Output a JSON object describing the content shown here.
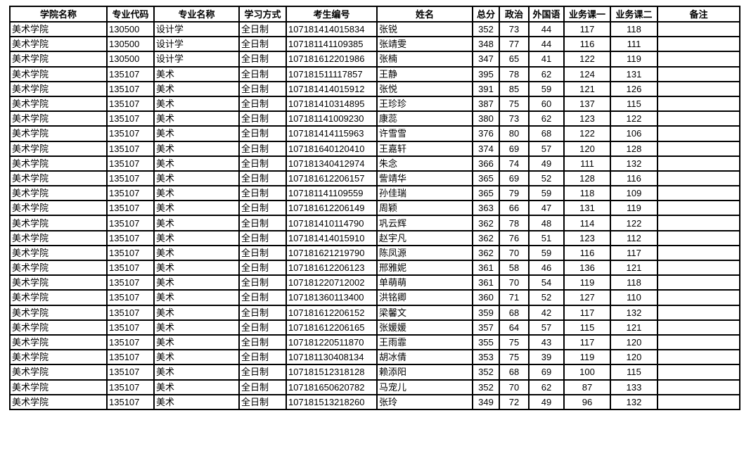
{
  "table": {
    "headers": [
      "学院名称",
      "专业代码",
      "专业名称",
      "学习方式",
      "考生编号",
      "姓名",
      "总分",
      "政治",
      "外国语",
      "业务课一",
      "业务课二",
      "备注"
    ],
    "rows": [
      [
        "美术学院",
        "130500",
        "设计学",
        "全日制",
        "107181414015834",
        "张锐",
        "352",
        "73",
        "44",
        "117",
        "118",
        ""
      ],
      [
        "美术学院",
        "130500",
        "设计学",
        "全日制",
        "107181141109385",
        "张靖雯",
        "348",
        "77",
        "44",
        "116",
        "111",
        ""
      ],
      [
        "美术学院",
        "130500",
        "设计学",
        "全日制",
        "107181612201986",
        "张楠",
        "347",
        "65",
        "41",
        "122",
        "119",
        ""
      ],
      [
        "美术学院",
        "135107",
        "美术",
        "全日制",
        "107181511117857",
        "王静",
        "395",
        "78",
        "62",
        "124",
        "131",
        ""
      ],
      [
        "美术学院",
        "135107",
        "美术",
        "全日制",
        "107181414015912",
        "张悦",
        "391",
        "85",
        "59",
        "121",
        "126",
        ""
      ],
      [
        "美术学院",
        "135107",
        "美术",
        "全日制",
        "107181410314895",
        "王珍珍",
        "387",
        "75",
        "60",
        "137",
        "115",
        ""
      ],
      [
        "美术学院",
        "135107",
        "美术",
        "全日制",
        "107181141009230",
        "康蕊",
        "380",
        "73",
        "62",
        "123",
        "122",
        ""
      ],
      [
        "美术学院",
        "135107",
        "美术",
        "全日制",
        "107181414115963",
        "许雪雪",
        "376",
        "80",
        "68",
        "122",
        "106",
        ""
      ],
      [
        "美术学院",
        "135107",
        "美术",
        "全日制",
        "107181640120410",
        "王嘉轩",
        "374",
        "69",
        "57",
        "120",
        "128",
        ""
      ],
      [
        "美术学院",
        "135107",
        "美术",
        "全日制",
        "107181340412974",
        "朱念",
        "366",
        "74",
        "49",
        "111",
        "132",
        ""
      ],
      [
        "美术学院",
        "135107",
        "美术",
        "全日制",
        "107181612206157",
        "訾靖华",
        "365",
        "69",
        "52",
        "128",
        "116",
        ""
      ],
      [
        "美术学院",
        "135107",
        "美术",
        "全日制",
        "107181141109559",
        "孙佳瑞",
        "365",
        "79",
        "59",
        "118",
        "109",
        ""
      ],
      [
        "美术学院",
        "135107",
        "美术",
        "全日制",
        "107181612206149",
        "周颖",
        "363",
        "66",
        "47",
        "131",
        "119",
        ""
      ],
      [
        "美术学院",
        "135107",
        "美术",
        "全日制",
        "107181410114790",
        "巩云辉",
        "362",
        "78",
        "48",
        "114",
        "122",
        ""
      ],
      [
        "美术学院",
        "135107",
        "美术",
        "全日制",
        "107181414015910",
        "赵宇凡",
        "362",
        "76",
        "51",
        "123",
        "112",
        ""
      ],
      [
        "美术学院",
        "135107",
        "美术",
        "全日制",
        "107181621219790",
        "陈凤源",
        "362",
        "70",
        "59",
        "116",
        "117",
        ""
      ],
      [
        "美术学院",
        "135107",
        "美术",
        "全日制",
        "107181612206123",
        "邢雅妮",
        "361",
        "58",
        "46",
        "136",
        "121",
        ""
      ],
      [
        "美术学院",
        "135107",
        "美术",
        "全日制",
        "107181220712002",
        "单萌萌",
        "361",
        "70",
        "54",
        "119",
        "118",
        ""
      ],
      [
        "美术学院",
        "135107",
        "美术",
        "全日制",
        "107181360113400",
        "洪铭卿",
        "360",
        "71",
        "52",
        "127",
        "110",
        ""
      ],
      [
        "美术学院",
        "135107",
        "美术",
        "全日制",
        "107181612206152",
        "梁馨文",
        "359",
        "68",
        "42",
        "117",
        "132",
        ""
      ],
      [
        "美术学院",
        "135107",
        "美术",
        "全日制",
        "107181612206165",
        "张媛媛",
        "357",
        "64",
        "57",
        "115",
        "121",
        ""
      ],
      [
        "美术学院",
        "135107",
        "美术",
        "全日制",
        "107181220511870",
        "王雨霏",
        "355",
        "75",
        "43",
        "117",
        "120",
        ""
      ],
      [
        "美术学院",
        "135107",
        "美术",
        "全日制",
        "107181130408134",
        "胡冰倩",
        "353",
        "75",
        "39",
        "119",
        "120",
        ""
      ],
      [
        "美术学院",
        "135107",
        "美术",
        "全日制",
        "107181512318128",
        "赖添阳",
        "352",
        "68",
        "69",
        "100",
        "115",
        ""
      ],
      [
        "美术学院",
        "135107",
        "美术",
        "全日制",
        "107181650620782",
        "马宠儿",
        "352",
        "70",
        "62",
        "87",
        "133",
        ""
      ],
      [
        "美术学院",
        "135107",
        "美术",
        "全日制",
        "107181513218260",
        "张玲",
        "349",
        "72",
        "49",
        "96",
        "132",
        ""
      ]
    ]
  }
}
